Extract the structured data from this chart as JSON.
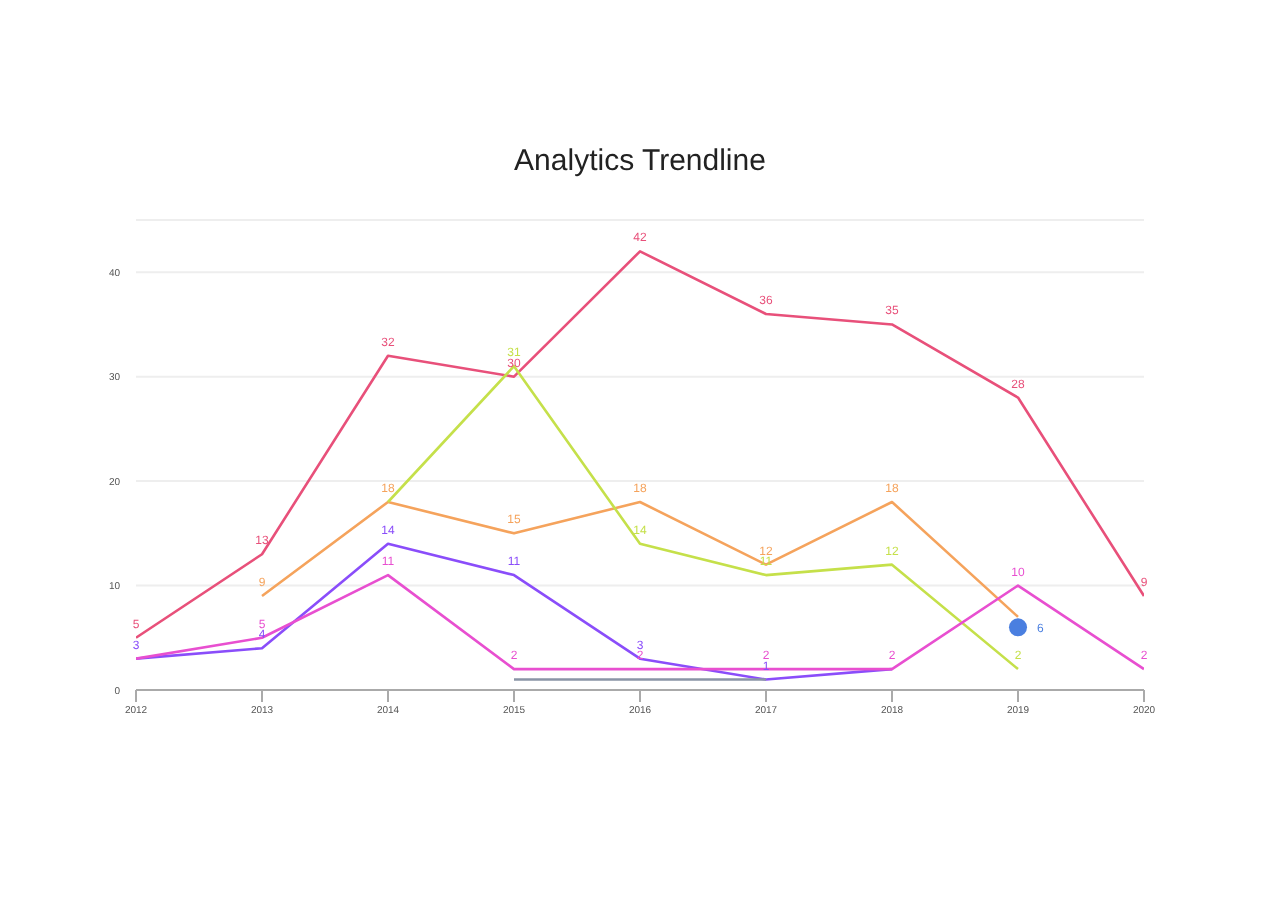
{
  "chart_data": {
    "type": "line",
    "title": "Analytics Trendline",
    "x": [
      2012,
      2013,
      2014,
      2015,
      2016,
      2017,
      2018,
      2019,
      2020
    ],
    "series": [
      {
        "color": "#e8507a",
        "values": [
          5,
          13,
          32,
          30,
          42,
          36,
          35,
          28,
          9
        ],
        "value_labels": [
          "5",
          "13",
          "32",
          "30",
          "42",
          "36",
          "35",
          "28",
          "9"
        ]
      },
      {
        "color": "#f5a35c",
        "values": [
          null,
          9,
          18,
          15,
          18,
          12,
          18,
          7,
          null
        ],
        "value_labels": [
          null,
          "9",
          "18",
          "15",
          "18",
          "12",
          "18",
          null,
          null
        ]
      },
      {
        "color": "#c5e04a",
        "values": [
          null,
          null,
          18,
          31,
          14,
          11,
          12,
          2,
          null
        ],
        "value_labels": [
          null,
          null,
          null,
          "31",
          "14",
          "11",
          "12",
          "2",
          null
        ]
      },
      {
        "color": "#8a4dfa",
        "values": [
          3,
          4,
          14,
          11,
          3,
          1,
          2,
          null,
          null
        ],
        "value_labels": [
          "3",
          "4",
          "14",
          "11",
          "3",
          "1",
          null,
          null,
          null
        ]
      },
      {
        "color": "#e84fd0",
        "values": [
          3,
          5,
          11,
          2,
          2,
          2,
          2,
          10,
          2
        ],
        "value_labels": [
          null,
          "5",
          "11",
          "2",
          "2",
          "2",
          "2",
          "10",
          "2"
        ]
      },
      {
        "color": "#8a94a6",
        "values": [
          null,
          null,
          null,
          1,
          1,
          1,
          null,
          null,
          null
        ],
        "value_labels": [
          null,
          null,
          null,
          null,
          null,
          null,
          null,
          null,
          null
        ]
      },
      {
        "type": "scatter",
        "color": "#4a7fe0",
        "values": [
          null,
          null,
          null,
          null,
          null,
          null,
          null,
          6,
          null
        ],
        "value_labels": [
          null,
          null,
          null,
          null,
          null,
          null,
          null,
          "6",
          null
        ]
      }
    ],
    "xlim": [
      2012,
      2020
    ],
    "xticks": [
      2012,
      2013,
      2014,
      2015,
      2016,
      2017,
      2018,
      2019,
      2020
    ],
    "ylim": [
      0,
      45
    ],
    "yticks": [
      0,
      10,
      20,
      30,
      40
    ],
    "grid": "y",
    "legend": false
  }
}
